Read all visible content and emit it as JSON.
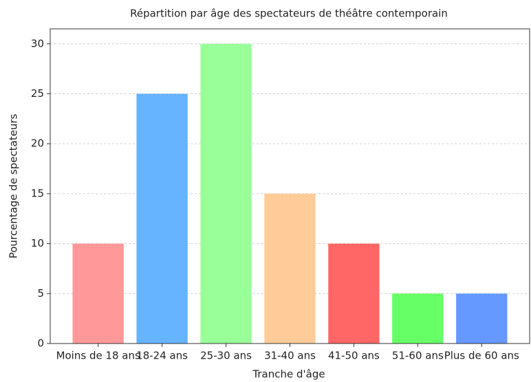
{
  "chart_data": {
    "type": "bar",
    "title": "Répartition par âge des spectateurs de théâtre contemporain",
    "xlabel": "Tranche d'âge",
    "ylabel": "Pourcentage de spectateurs",
    "categories": [
      "Moins de 18 ans",
      "18-24 ans",
      "25-30 ans",
      "31-40 ans",
      "41-50 ans",
      "51-60 ans",
      "Plus de 60 ans"
    ],
    "values": [
      10,
      25,
      30,
      15,
      10,
      5,
      5
    ],
    "colors": [
      "#ff9999",
      "#66b3ff",
      "#99ff99",
      "#ffcc99",
      "#ff6666",
      "#66ff66",
      "#6699ff"
    ],
    "ylim": [
      0,
      31.5
    ],
    "yticks": [
      0,
      5,
      10,
      15,
      20,
      25,
      30
    ],
    "grid": true
  }
}
